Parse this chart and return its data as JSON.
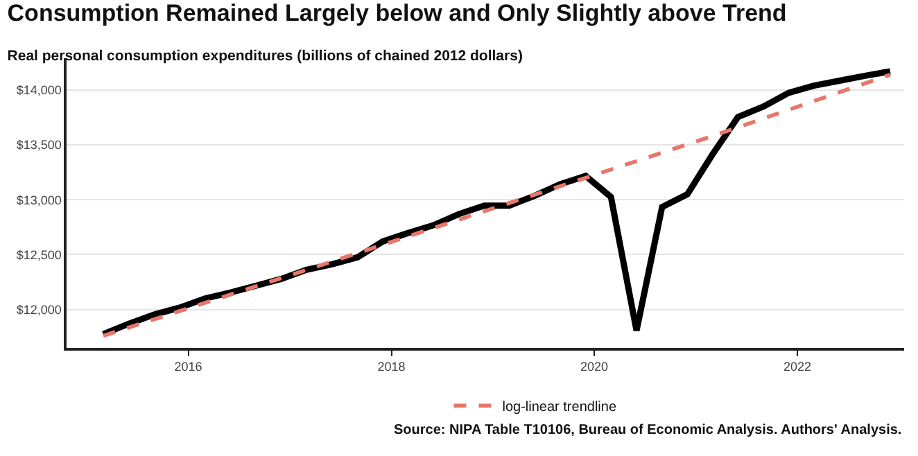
{
  "chart_data": {
    "type": "line",
    "title": "Consumption Remained Largely below and Only Slightly above Trend",
    "subtitle": "Real personal consumption expenditures (billions of chained 2012 dollars)",
    "x": [
      "2015-03-01",
      "2015-06-01",
      "2015-09-01",
      "2015-12-01",
      "2016-03-01",
      "2016-06-01",
      "2016-09-01",
      "2016-12-01",
      "2017-03-01",
      "2017-06-01",
      "2017-09-01",
      "2017-12-01",
      "2018-03-01",
      "2018-06-01",
      "2018-09-01",
      "2018-12-01",
      "2019-03-01",
      "2019-06-01",
      "2019-09-01",
      "2019-12-01",
      "2020-03-01",
      "2020-06-01",
      "2020-09-01",
      "2020-12-01",
      "2021-03-01",
      "2021-06-01",
      "2021-09-01",
      "2021-12-01",
      "2022-03-01",
      "2022-06-01",
      "2022-09-01",
      "2022-12-01"
    ],
    "series": [
      {
        "color": "#000000",
        "values": [
          11775,
          11870,
          11954,
          12017,
          12100,
          12154,
          12217,
          12279,
          12362,
          12412,
          12475,
          12620,
          12696,
          12767,
          12870,
          12946,
          12946,
          13037,
          13142,
          13217,
          13025,
          11808,
          12933,
          13050,
          13412,
          13754,
          13850,
          13975,
          14040,
          14085,
          14130,
          14170
        ]
      },
      {
        "name": "log-linear trendline",
        "type": "line",
        "line_style": "dashed",
        "color": "#e8766b",
        "x": [
          "2015-03-01",
          "2017-03-01",
          "2019-03-01",
          "2021-03-01",
          "2022-12-01"
        ],
        "values": [
          11760,
          12360,
          12970,
          13580,
          14140
        ]
      }
    ],
    "xlim": [
      "2014-10-20",
      "2023-01-20"
    ],
    "xticks": [
      "2016",
      "2018",
      "2020",
      "2022"
    ],
    "ylim": [
      11650,
      14290
    ],
    "yticks": [
      {
        "value": 12000,
        "label": "$12,000"
      },
      {
        "value": 12500,
        "label": "$12,500"
      },
      {
        "value": 13000,
        "label": "$13,000"
      },
      {
        "value": 13500,
        "label": "$13,500"
      },
      {
        "value": 14000,
        "label": "$14,000"
      }
    ],
    "grid": "y",
    "legend": "bottom",
    "line_style": "solid",
    "marker": "none",
    "annotations": [
      "Source: NIPA Table T10106, Bureau of Economic Analysis. Authors' Analysis."
    ]
  }
}
